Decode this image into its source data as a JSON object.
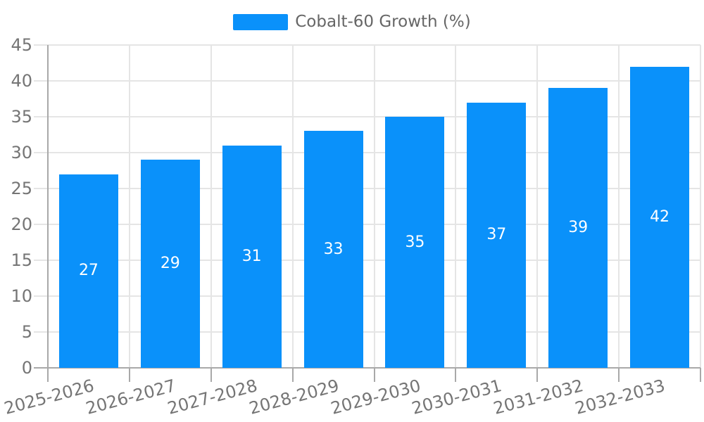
{
  "chart_data": {
    "type": "bar",
    "title": "",
    "categories": [
      "2025-2026",
      "2026-2027",
      "2027-2028",
      "2028-2029",
      "2029-2030",
      "2030-2031",
      "2031-2032",
      "2032-2033"
    ],
    "series": [
      {
        "name": "Cobalt-60 Growth (%)",
        "values": [
          27,
          29,
          31,
          33,
          35,
          37,
          39,
          42
        ]
      }
    ],
    "xlabel": "",
    "ylabel": "",
    "ylim": [
      0,
      45
    ],
    "ytick_step": 5,
    "yticks": [
      0,
      5,
      10,
      15,
      20,
      25,
      30,
      35,
      40,
      45
    ],
    "grid": true,
    "legend_position": "top-center",
    "value_label_position": "inside-center",
    "x_label_rotation_deg": -15,
    "colors": {
      "bar": "#0a91fa",
      "bar_label": "#ffffff",
      "axis_line": "#a9a9a9",
      "gridline": "#e5e5e5",
      "tick_label": "#757575",
      "legend_text": "#666666",
      "background": "#ffffff"
    }
  }
}
